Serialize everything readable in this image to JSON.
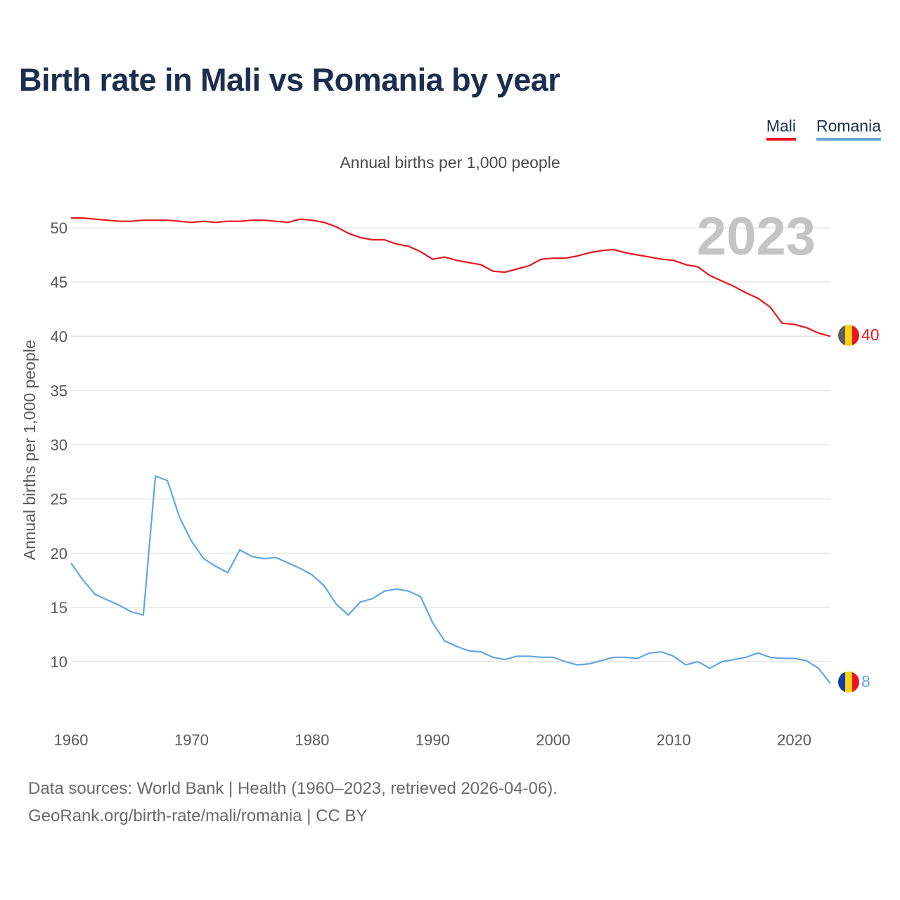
{
  "title": "Birth rate in Mali vs Romania by year",
  "subtitle": "Annual births per 1,000 people",
  "legend": [
    {
      "label": "Mali",
      "color": "#e8161d"
    },
    {
      "label": "Romania",
      "color": "#62a6e5"
    }
  ],
  "year_watermark": "2023",
  "sources": {
    "line1": "Data sources: World Bank | Health (1960–2023, retrieved 2026-04-06).",
    "line2": "GeoRank.org/birth-rate/mali/romania | CC BY"
  },
  "chart_data": {
    "type": "line",
    "title": "Birth rate in Mali vs Romania by year",
    "ylabel": "Annual births per 1,000 people",
    "xlabel": "",
    "xlim": [
      1960,
      2023
    ],
    "ylim": [
      6,
      53
    ],
    "xticks": [
      1960,
      1970,
      1980,
      1990,
      2000,
      2010,
      2020
    ],
    "yticks": [
      10,
      15,
      20,
      25,
      30,
      35,
      40,
      45,
      50
    ],
    "grid": true,
    "legend_position": "top-right",
    "x": [
      1960,
      1961,
      1962,
      1963,
      1964,
      1965,
      1966,
      1967,
      1968,
      1969,
      1970,
      1971,
      1972,
      1973,
      1974,
      1975,
      1976,
      1977,
      1978,
      1979,
      1980,
      1981,
      1982,
      1983,
      1984,
      1985,
      1986,
      1987,
      1988,
      1989,
      1990,
      1991,
      1992,
      1993,
      1994,
      1995,
      1996,
      1997,
      1998,
      1999,
      2000,
      2001,
      2002,
      2003,
      2004,
      2005,
      2006,
      2007,
      2008,
      2009,
      2010,
      2011,
      2012,
      2013,
      2014,
      2015,
      2016,
      2017,
      2018,
      2019,
      2020,
      2021,
      2022,
      2023
    ],
    "series": [
      {
        "name": "Mali",
        "color": "#e8161d",
        "end_label": "40",
        "values": [
          50.9,
          50.9,
          50.8,
          50.7,
          50.6,
          50.6,
          50.7,
          50.7,
          50.7,
          50.6,
          50.5,
          50.6,
          50.5,
          50.6,
          50.6,
          50.7,
          50.7,
          50.6,
          50.5,
          50.8,
          50.7,
          50.5,
          50.1,
          49.5,
          49.1,
          48.9,
          48.9,
          48.5,
          48.3,
          47.8,
          47.1,
          47.3,
          47.0,
          46.8,
          46.6,
          46.0,
          45.9,
          46.2,
          46.5,
          47.1,
          47.2,
          47.2,
          47.4,
          47.7,
          47.9,
          48.0,
          47.7,
          47.5,
          47.3,
          47.1,
          47.0,
          46.6,
          46.4,
          45.6,
          45.1,
          44.6,
          44.0,
          43.5,
          42.7,
          41.2,
          41.1,
          40.8,
          40.3,
          40.0
        ]
      },
      {
        "name": "Romania",
        "color": "#62a6e5",
        "end_label": "8",
        "values": [
          19.1,
          17.5,
          16.2,
          15.7,
          15.2,
          14.6,
          14.3,
          27.1,
          26.7,
          23.3,
          21.1,
          19.5,
          18.8,
          18.2,
          20.3,
          19.7,
          19.5,
          19.6,
          19.1,
          18.6,
          18.0,
          17.0,
          15.3,
          14.3,
          15.5,
          15.8,
          16.5,
          16.7,
          16.5,
          16.0,
          13.6,
          11.9,
          11.4,
          11.0,
          10.9,
          10.4,
          10.2,
          10.5,
          10.5,
          10.4,
          10.4,
          10.0,
          9.7,
          9.8,
          10.1,
          10.4,
          10.4,
          10.3,
          10.8,
          10.9,
          10.5,
          9.7,
          10.0,
          9.4,
          10.0,
          10.2,
          10.4,
          10.8,
          10.4,
          10.3,
          10.3,
          10.1,
          9.4,
          8.0
        ]
      }
    ]
  }
}
